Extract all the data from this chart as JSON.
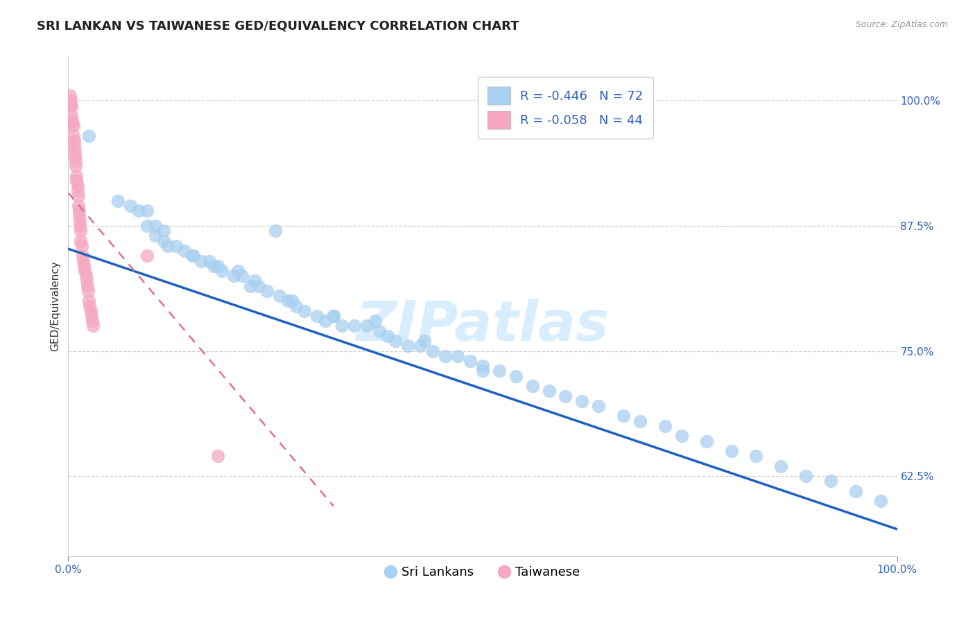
{
  "title": "SRI LANKAN VS TAIWANESE GED/EQUIVALENCY CORRELATION CHART",
  "source": "Source: ZipAtlas.com",
  "ylabel": "GED/Equivalency",
  "xlim": [
    0.0,
    1.0
  ],
  "ylim": [
    0.545,
    1.045
  ],
  "yticks": [
    0.625,
    0.75,
    0.875,
    1.0
  ],
  "ytick_labels": [
    "62.5%",
    "75.0%",
    "87.5%",
    "100.0%"
  ],
  "xtick_labels": [
    "0.0%",
    "100.0%"
  ],
  "sl_R": -0.446,
  "sl_N": 72,
  "tw_R": -0.058,
  "tw_N": 44,
  "sl_color": "#A8D0F0",
  "tw_color": "#F5A8C0",
  "sl_line_color": "#2060C0",
  "tw_line_color": "#E07090",
  "grid_color": "#C8C8C8",
  "bg_color": "#FFFFFF",
  "title_color": "#222222",
  "watermark": "ZIPatlas",
  "watermark_color": "#D8EEFF",
  "legend_sl_label": "Sri Lankans",
  "legend_tw_label": "Taiwanese",
  "sl_line_x0": 0.0,
  "sl_line_y0": 0.852,
  "sl_line_x1": 1.0,
  "sl_line_y1": 0.572,
  "tw_line_x0": 0.0,
  "tw_line_y0": 0.908,
  "tw_line_x1": 0.32,
  "tw_line_y1": 0.595,
  "sl_x": [
    0.025,
    0.25,
    0.06,
    0.075,
    0.085,
    0.095,
    0.095,
    0.105,
    0.105,
    0.115,
    0.115,
    0.12,
    0.13,
    0.14,
    0.15,
    0.16,
    0.17,
    0.175,
    0.185,
    0.2,
    0.205,
    0.21,
    0.225,
    0.23,
    0.24,
    0.255,
    0.265,
    0.275,
    0.285,
    0.3,
    0.31,
    0.32,
    0.33,
    0.345,
    0.36,
    0.375,
    0.385,
    0.395,
    0.41,
    0.425,
    0.44,
    0.455,
    0.47,
    0.485,
    0.5,
    0.52,
    0.54,
    0.56,
    0.58,
    0.6,
    0.62,
    0.64,
    0.67,
    0.69,
    0.72,
    0.74,
    0.77,
    0.8,
    0.83,
    0.86,
    0.89,
    0.92,
    0.95,
    0.98,
    0.15,
    0.18,
    0.22,
    0.27,
    0.32,
    0.37,
    0.43,
    0.5
  ],
  "sl_y": [
    0.965,
    0.87,
    0.9,
    0.895,
    0.89,
    0.89,
    0.875,
    0.875,
    0.865,
    0.87,
    0.86,
    0.855,
    0.855,
    0.85,
    0.845,
    0.84,
    0.84,
    0.835,
    0.83,
    0.825,
    0.83,
    0.825,
    0.82,
    0.815,
    0.81,
    0.805,
    0.8,
    0.795,
    0.79,
    0.785,
    0.78,
    0.785,
    0.775,
    0.775,
    0.775,
    0.77,
    0.765,
    0.76,
    0.755,
    0.755,
    0.75,
    0.745,
    0.745,
    0.74,
    0.735,
    0.73,
    0.725,
    0.715,
    0.71,
    0.705,
    0.7,
    0.695,
    0.685,
    0.68,
    0.675,
    0.665,
    0.66,
    0.65,
    0.645,
    0.635,
    0.625,
    0.62,
    0.61,
    0.6,
    0.845,
    0.835,
    0.815,
    0.8,
    0.785,
    0.78,
    0.76,
    0.73
  ],
  "tw_x": [
    0.002,
    0.003,
    0.003,
    0.004,
    0.004,
    0.005,
    0.005,
    0.006,
    0.006,
    0.007,
    0.007,
    0.008,
    0.008,
    0.009,
    0.009,
    0.01,
    0.01,
    0.011,
    0.011,
    0.012,
    0.012,
    0.013,
    0.013,
    0.014,
    0.014,
    0.015,
    0.015,
    0.016,
    0.017,
    0.018,
    0.019,
    0.02,
    0.021,
    0.022,
    0.023,
    0.024,
    0.025,
    0.026,
    0.027,
    0.028,
    0.029,
    0.03,
    0.095,
    0.18
  ],
  "tw_y": [
    1.005,
    1.0,
    0.995,
    0.995,
    0.985,
    0.98,
    0.975,
    0.975,
    0.965,
    0.96,
    0.955,
    0.95,
    0.945,
    0.94,
    0.935,
    0.925,
    0.92,
    0.915,
    0.91,
    0.905,
    0.895,
    0.89,
    0.885,
    0.88,
    0.875,
    0.87,
    0.86,
    0.855,
    0.845,
    0.84,
    0.835,
    0.83,
    0.825,
    0.82,
    0.815,
    0.81,
    0.8,
    0.795,
    0.79,
    0.785,
    0.78,
    0.775,
    0.845,
    0.645
  ],
  "title_fontsize": 13,
  "axis_label_fontsize": 11,
  "tick_fontsize": 11,
  "legend_fontsize": 13,
  "source_fontsize": 9
}
